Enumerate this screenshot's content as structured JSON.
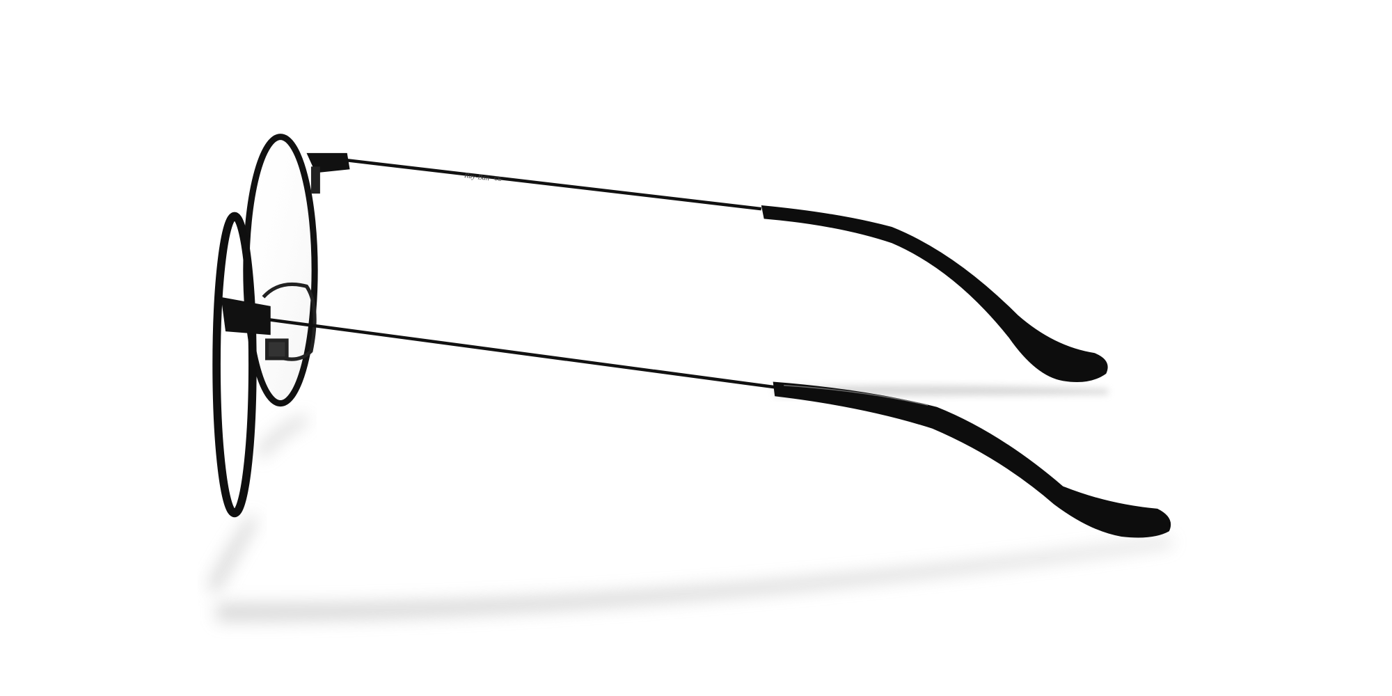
{
  "image": {
    "temple_logo": "Ray-Ban",
    "temple_mark": "CE"
  }
}
